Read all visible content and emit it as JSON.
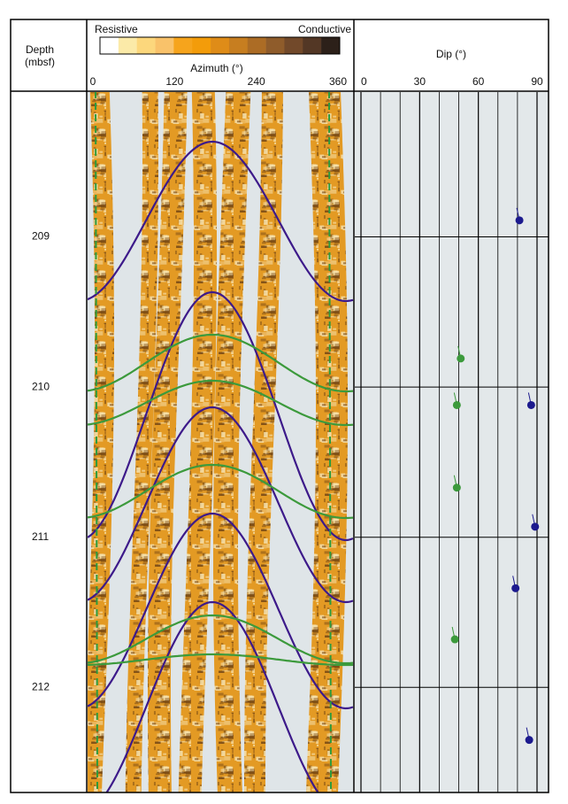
{
  "chart_data": {
    "type": "tadpole",
    "ylabel": "Depth",
    "ylabel_unit": "(mbsf)",
    "ylim": [
      208.03,
      212.7
    ],
    "yticks": [
      209,
      210,
      211,
      212
    ],
    "color_bar": {
      "left_label": "Resistive",
      "right_label": "Conductive"
    },
    "image_xlabel": "Azimuth (°)",
    "image_xlim": [
      0,
      360
    ],
    "image_xticks": [
      0,
      120,
      240,
      360
    ],
    "xlabel": "Dip (°)",
    "xlim": [
      0,
      90
    ],
    "xticks": [
      0,
      30,
      60,
      90
    ],
    "minor_xticks": [
      10,
      20,
      40,
      50,
      70,
      80
    ],
    "series": [
      {
        "color": "#1c1a8e",
        "depth": [
          208.89,
          210.12,
          210.93,
          211.34,
          212.35
        ],
        "dip": [
          81,
          87,
          89,
          79,
          86
        ]
      },
      {
        "color": "#3c9a3c",
        "depth": [
          209.81,
          210.12,
          210.67,
          211.68
        ],
        "dip": [
          51,
          49,
          49,
          48
        ]
      }
    ]
  }
}
